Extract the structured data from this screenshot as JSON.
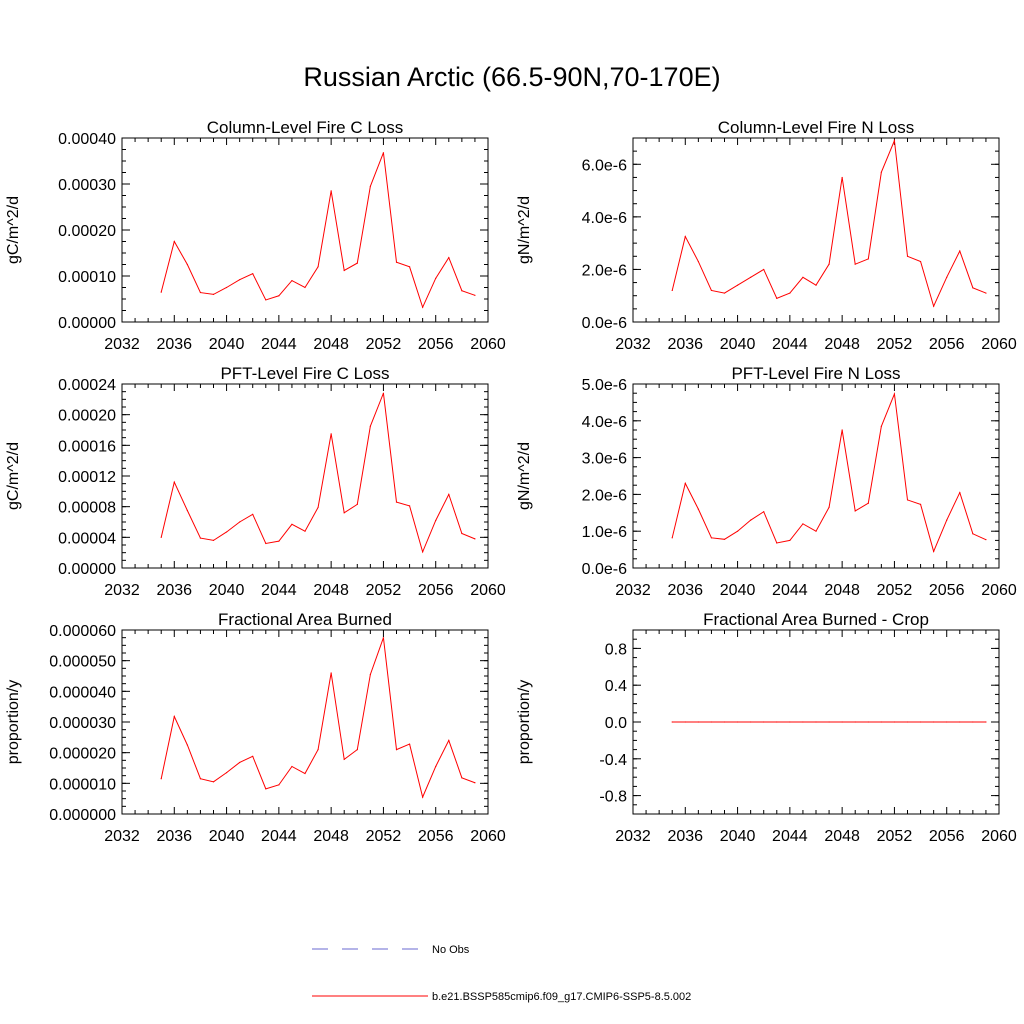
{
  "main_title": "Russian Arctic (66.5-90N,70-170E)",
  "colors": {
    "series": "#ff0000",
    "obs": "#6a6ad0",
    "axis": "#000000"
  },
  "legend": {
    "items": [
      {
        "label": "No Obs",
        "style": "dashed",
        "color": "#6a6ad0"
      },
      {
        "label": "b.e21.BSSP585cmip6.f09_g17.CMIP6-SSP5-8.5.002",
        "style": "solid",
        "color": "#ff0000"
      }
    ]
  },
  "chart_data": [
    {
      "type": "line",
      "title": "Column-Level Fire C Loss",
      "ylabel": "gC/m^2/d",
      "xlim": [
        2032,
        2060
      ],
      "xticks": [
        "2032",
        "2036",
        "2040",
        "2044",
        "2048",
        "2052",
        "2056",
        "2060"
      ],
      "ylim": [
        0,
        0.0004
      ],
      "yticks": [
        "0.00000",
        "0.00010",
        "0.00020",
        "0.00030",
        "0.00040"
      ],
      "x": [
        2035,
        2036,
        2037,
        2038,
        2039,
        2040,
        2041,
        2042,
        2043,
        2044,
        2045,
        2046,
        2047,
        2048,
        2049,
        2050,
        2051,
        2052,
        2053,
        2054,
        2055,
        2056,
        2057,
        2058,
        2059
      ],
      "series": [
        {
          "values": [
            6.5e-05,
            0.000175,
            0.000125,
            6.4e-05,
            6e-05,
            7.5e-05,
            9.2e-05,
            0.000105,
            4.8e-05,
            5.7e-05,
            9e-05,
            7.5e-05,
            0.00012,
            0.000285,
            0.000112,
            0.000128,
            0.000295,
            0.000368,
            0.00013,
            0.00012,
            3.2e-05,
            9.5e-05,
            0.00014,
            6.8e-05,
            5.8e-05
          ]
        }
      ]
    },
    {
      "type": "line",
      "title": "Column-Level Fire N Loss",
      "ylabel": "gN/m^2/d",
      "xlim": [
        2032,
        2060
      ],
      "xticks": [
        "2032",
        "2036",
        "2040",
        "2044",
        "2048",
        "2052",
        "2056",
        "2060"
      ],
      "ylim": [
        0,
        7e-06
      ],
      "yticks": [
        "0.0e-6",
        "2.0e-6",
        "4.0e-6",
        "6.0e-6"
      ],
      "ytick_values": [
        0,
        2e-06,
        4e-06,
        6e-06
      ],
      "x": [
        2035,
        2036,
        2037,
        2038,
        2039,
        2040,
        2041,
        2042,
        2043,
        2044,
        2045,
        2046,
        2047,
        2048,
        2049,
        2050,
        2051,
        2052,
        2053,
        2054,
        2055,
        2056,
        2057,
        2058,
        2059
      ],
      "series": [
        {
          "values": [
            1.2e-06,
            3.25e-06,
            2.3e-06,
            1.2e-06,
            1.1e-06,
            1.4e-06,
            1.7e-06,
            2e-06,
            9e-07,
            1.1e-06,
            1.7e-06,
            1.4e-06,
            2.2e-06,
            5.5e-06,
            2.2e-06,
            2.4e-06,
            5.7e-06,
            6.9e-06,
            2.5e-06,
            2.3e-06,
            6e-07,
            1.7e-06,
            2.7e-06,
            1.3e-06,
            1.1e-06
          ]
        }
      ]
    },
    {
      "type": "line",
      "title": "PFT-Level Fire C Loss",
      "ylabel": "gC/m^2/d",
      "xlim": [
        2032,
        2060
      ],
      "xticks": [
        "2032",
        "2036",
        "2040",
        "2044",
        "2048",
        "2052",
        "2056",
        "2060"
      ],
      "ylim": [
        0,
        0.00024
      ],
      "yticks": [
        "0.00000",
        "0.00004",
        "0.00008",
        "0.00012",
        "0.00016",
        "0.00020",
        "0.00024"
      ],
      "x": [
        2035,
        2036,
        2037,
        2038,
        2039,
        2040,
        2041,
        2042,
        2043,
        2044,
        2045,
        2046,
        2047,
        2048,
        2049,
        2050,
        2051,
        2052,
        2053,
        2054,
        2055,
        2056,
        2057,
        2058,
        2059
      ],
      "series": [
        {
          "values": [
            4e-05,
            0.000112,
            7.5e-05,
            3.9e-05,
            3.6e-05,
            4.7e-05,
            6e-05,
            7e-05,
            3.2e-05,
            3.5e-05,
            5.7e-05,
            4.8e-05,
            7.9e-05,
            0.000175,
            7.2e-05,
            8.3e-05,
            0.000185,
            0.000228,
            8.6e-05,
            8.1e-05,
            2.1e-05,
            6.2e-05,
            9.6e-05,
            4.5e-05,
            3.8e-05
          ]
        }
      ]
    },
    {
      "type": "line",
      "title": "PFT-Level Fire N Loss",
      "ylabel": "gN/m^2/d",
      "xlim": [
        2032,
        2060
      ],
      "xticks": [
        "2032",
        "2036",
        "2040",
        "2044",
        "2048",
        "2052",
        "2056",
        "2060"
      ],
      "ylim": [
        0,
        5e-06
      ],
      "yticks": [
        "0.0e-6",
        "1.0e-6",
        "2.0e-6",
        "3.0e-6",
        "4.0e-6",
        "5.0e-6"
      ],
      "ytick_values": [
        0,
        1e-06,
        2e-06,
        3e-06,
        4e-06,
        5e-06
      ],
      "x": [
        2035,
        2036,
        2037,
        2038,
        2039,
        2040,
        2041,
        2042,
        2043,
        2044,
        2045,
        2046,
        2047,
        2048,
        2049,
        2050,
        2051,
        2052,
        2053,
        2054,
        2055,
        2056,
        2057,
        2058,
        2059
      ],
      "series": [
        {
          "values": [
            8.2e-07,
            2.3e-06,
            1.6e-06,
            8.2e-07,
            7.8e-07,
            1e-06,
            1.3e-06,
            1.53e-06,
            6.8e-07,
            7.5e-07,
            1.2e-06,
            1e-06,
            1.65e-06,
            3.75e-06,
            1.55e-06,
            1.76e-06,
            3.85e-06,
            4.73e-06,
            1.85e-06,
            1.73e-06,
            4.5e-07,
            1.3e-06,
            2.05e-06,
            9.3e-07,
            7.7e-07
          ]
        }
      ]
    },
    {
      "type": "line",
      "title": "Fractional Area Burned",
      "ylabel": "proportion/y",
      "xlim": [
        2032,
        2060
      ],
      "xticks": [
        "2032",
        "2036",
        "2040",
        "2044",
        "2048",
        "2052",
        "2056",
        "2060"
      ],
      "ylim": [
        0,
        6e-05
      ],
      "yticks": [
        "0.000000",
        "0.000010",
        "0.000020",
        "0.000030",
        "0.000040",
        "0.000050",
        "0.000060"
      ],
      "x": [
        2035,
        2036,
        2037,
        2038,
        2039,
        2040,
        2041,
        2042,
        2043,
        2044,
        2045,
        2046,
        2047,
        2048,
        2049,
        2050,
        2051,
        2052,
        2053,
        2054,
        2055,
        2056,
        2057,
        2058,
        2059
      ],
      "series": [
        {
          "values": [
            1.15e-05,
            3.18e-05,
            2.25e-05,
            1.15e-05,
            1.05e-05,
            1.35e-05,
            1.68e-05,
            1.88e-05,
            8.2e-06,
            9.5e-06,
            1.55e-05,
            1.32e-05,
            2.1e-05,
            4.6e-05,
            1.78e-05,
            2.1e-05,
            4.55e-05,
            5.75e-05,
            2.1e-05,
            2.28e-05,
            5.5e-06,
            1.55e-05,
            2.4e-05,
            1.18e-05,
            1.02e-05
          ]
        }
      ]
    },
    {
      "type": "line",
      "title": "Fractional Area Burned - Crop",
      "ylabel": "proportion/y",
      "xlim": [
        2032,
        2060
      ],
      "xticks": [
        "2032",
        "2036",
        "2040",
        "2044",
        "2048",
        "2052",
        "2056",
        "2060"
      ],
      "ylim": [
        -1,
        1
      ],
      "yticks": [
        "-0.8",
        "-0.4",
        "0.0",
        "0.4",
        "0.8"
      ],
      "ytick_values": [
        -0.8,
        -0.4,
        0.0,
        0.4,
        0.8
      ],
      "x": [
        2035,
        2036,
        2037,
        2038,
        2039,
        2040,
        2041,
        2042,
        2043,
        2044,
        2045,
        2046,
        2047,
        2048,
        2049,
        2050,
        2051,
        2052,
        2053,
        2054,
        2055,
        2056,
        2057,
        2058,
        2059
      ],
      "series": [
        {
          "values": [
            0,
            0,
            0,
            0,
            0,
            0,
            0,
            0,
            0,
            0,
            0,
            0,
            0,
            0,
            0,
            0,
            0,
            0,
            0,
            0,
            0,
            0,
            0,
            0,
            0
          ]
        }
      ]
    }
  ]
}
